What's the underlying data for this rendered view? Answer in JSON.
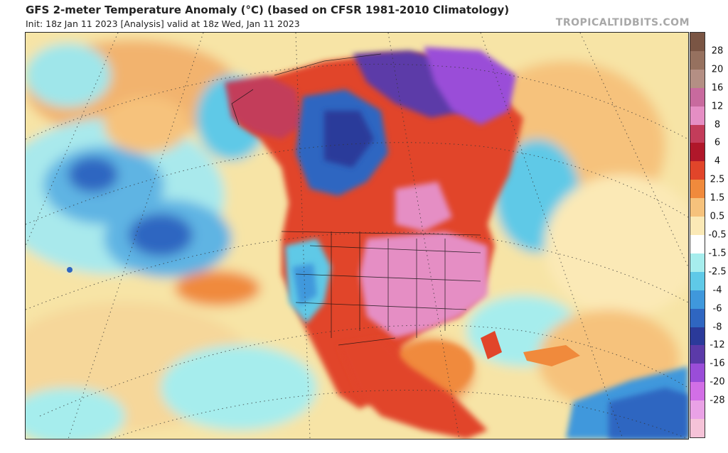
{
  "header": {
    "title": "GFS 2-meter Temperature Anomaly (°C) (based on CFSR 1981-2010 Climatology)",
    "subtitle": "Init: 18z Jan 11 2023   [Analysis]   valid at 18z Wed, Jan 11 2023",
    "brand": "TROPICALTIDBITS.COM"
  },
  "colorbar": {
    "ticks": [
      "28",
      "20",
      "16",
      "12",
      "8",
      "6",
      "4",
      "2.5",
      "1.5",
      "0.5",
      "-0.5",
      "-1.5",
      "-2.5",
      "-4",
      "-6",
      "-8",
      "-12",
      "-16",
      "-20",
      "-28"
    ],
    "colors": [
      "#7a5544",
      "#96715f",
      "#b48f84",
      "#c86a9e",
      "#e58ec4",
      "#c33c5a",
      "#b0172a",
      "#e1452a",
      "#f08a3c",
      "#f6c27c",
      "#fbe9b6",
      "#ffffff",
      "#a6eded",
      "#5fc9e7",
      "#3f98dc",
      "#2f66c1",
      "#2b3a9a",
      "#5b3aa8",
      "#9a4dd8",
      "#d26fe6",
      "#eaa2e6",
      "#f5c3d8"
    ]
  }
}
